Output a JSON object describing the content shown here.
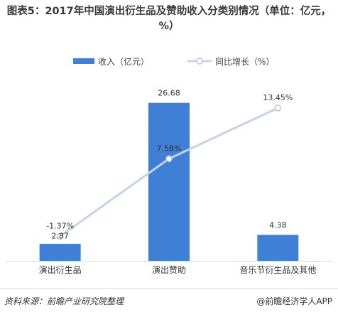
{
  "title": "图表5：2017年中国演出衍生品及赞助收入分类别情况（单位：亿元，%）",
  "legend": {
    "bar_label": "收入（亿元）",
    "line_label": "同比增长（%）"
  },
  "chart_data": {
    "type": "bar",
    "title": "图表5：2017年中国演出衍生品及赞助收入分类别情况（单位：亿元，%）",
    "categories": [
      "演出衍生品",
      "演出赞助",
      "音乐节衍生品及其他"
    ],
    "series": [
      {
        "name": "收入（亿元）",
        "type": "bar",
        "axis": "left",
        "values": [
          2.87,
          26.68,
          4.38
        ],
        "labels": [
          "2.87",
          "26.68",
          "4.38"
        ],
        "color": "#3F7FD6"
      },
      {
        "name": "同比增长（%）",
        "type": "line",
        "axis": "right",
        "values": [
          -1.37,
          7.58,
          13.45
        ],
        "labels": [
          "-1.37%",
          "7.58%",
          "13.45%"
        ],
        "color": "#C5D3E8"
      }
    ],
    "ylim_left": [
      0,
      30
    ],
    "ylim_right": [
      -2,
      15
    ],
    "grid": false,
    "legend_position": "top"
  },
  "footer": {
    "source": "资料来源：前瞻产业研究院整理",
    "watermark": "@前瞻经济学人APP"
  }
}
